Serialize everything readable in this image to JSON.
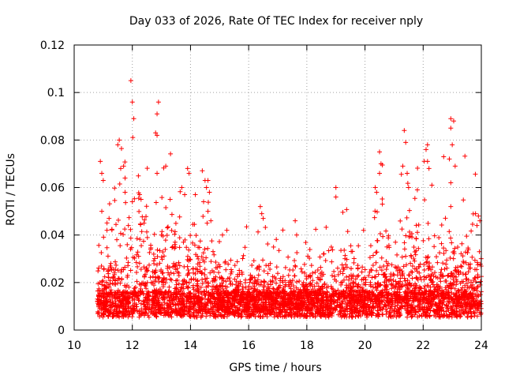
{
  "chart_data": {
    "type": "scatter",
    "title": "Day 033 of 2026, Rate Of TEC Index for receiver nply",
    "xlabel": "GPS time / hours",
    "ylabel": "ROTI / TECUs",
    "xlim": [
      10,
      24
    ],
    "ylim": [
      0,
      0.12
    ],
    "xticks": [
      "10",
      "12",
      "14",
      "16",
      "18",
      "20",
      "22",
      "24"
    ],
    "yticks": [
      "0",
      "0.02",
      "0.04",
      "0.06",
      "0.08",
      "0.1",
      "0.12"
    ],
    "grid": true,
    "marker": "+",
    "series_color": "#ff0000",
    "series": [
      {
        "name": "ROTI",
        "x_range": [
          10.8,
          24.0
        ],
        "baseline_median": 0.012,
        "points": [
          [
            11.95,
            0.105
          ],
          [
            12.0,
            0.096
          ],
          [
            12.9,
            0.096
          ],
          [
            12.85,
            0.091
          ],
          [
            12.05,
            0.089
          ],
          [
            12.8,
            0.083
          ],
          [
            11.55,
            0.08
          ],
          [
            11.5,
            0.078
          ],
          [
            12.85,
            0.082
          ],
          [
            21.35,
            0.084
          ],
          [
            22.95,
            0.089
          ],
          [
            23.05,
            0.088
          ],
          [
            22.95,
            0.085
          ],
          [
            21.4,
            0.079
          ],
          [
            22.15,
            0.078
          ],
          [
            22.1,
            0.076
          ],
          [
            20.5,
            0.075
          ],
          [
            23.0,
            0.078
          ],
          [
            10.9,
            0.071
          ],
          [
            10.95,
            0.066
          ],
          [
            11.0,
            0.063
          ],
          [
            11.7,
            0.069
          ],
          [
            11.75,
            0.064
          ],
          [
            11.6,
            0.068
          ],
          [
            12.85,
            0.066
          ],
          [
            13.15,
            0.069
          ],
          [
            13.9,
            0.068
          ],
          [
            13.95,
            0.066
          ],
          [
            14.5,
            0.063
          ],
          [
            14.6,
            0.063
          ],
          [
            14.55,
            0.06
          ],
          [
            14.65,
            0.058
          ],
          [
            20.55,
            0.07
          ],
          [
            20.5,
            0.066
          ],
          [
            21.3,
            0.069
          ],
          [
            21.45,
            0.066
          ],
          [
            22.15,
            0.071
          ],
          [
            22.2,
            0.068
          ],
          [
            22.9,
            0.072
          ],
          [
            23.1,
            0.069
          ],
          [
            22.95,
            0.062
          ],
          [
            19.0,
            0.06
          ],
          [
            19.0,
            0.056
          ],
          [
            16.4,
            0.052
          ],
          [
            16.45,
            0.049
          ],
          [
            16.5,
            0.047
          ],
          [
            17.6,
            0.046
          ],
          [
            17.65,
            0.04
          ],
          [
            10.95,
            0.05
          ],
          [
            11.2,
            0.047
          ],
          [
            11.75,
            0.058
          ],
          [
            12.0,
            0.054
          ],
          [
            12.25,
            0.057
          ],
          [
            12.3,
            0.055
          ],
          [
            13.3,
            0.055
          ],
          [
            13.7,
            0.06
          ],
          [
            13.8,
            0.057
          ],
          [
            14.45,
            0.054
          ],
          [
            14.6,
            0.05
          ],
          [
            14.7,
            0.046
          ],
          [
            20.35,
            0.06
          ],
          [
            20.4,
            0.058
          ],
          [
            21.5,
            0.06
          ],
          [
            21.8,
            0.059
          ],
          [
            22.3,
            0.061
          ],
          [
            22.95,
            0.052
          ],
          [
            23.8,
            0.049
          ],
          [
            23.9,
            0.048
          ],
          [
            23.95,
            0.046
          ],
          [
            23.85,
            0.044
          ],
          [
            19.95,
            0.042
          ],
          [
            15.1,
            0.04
          ],
          [
            15.25,
            0.042
          ],
          [
            13.0,
            0.04
          ],
          [
            12.4,
            0.045
          ]
        ]
      }
    ]
  }
}
